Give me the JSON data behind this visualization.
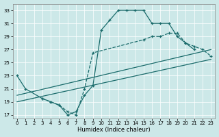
{
  "xlabel": "Humidex (Indice chaleur)",
  "xlim": [
    -0.5,
    23.5
  ],
  "ylim": [
    16.5,
    34
  ],
  "yticks": [
    17,
    19,
    21,
    23,
    25,
    27,
    29,
    31,
    33
  ],
  "xticks": [
    0,
    1,
    2,
    3,
    4,
    5,
    6,
    7,
    8,
    9,
    10,
    11,
    12,
    13,
    14,
    15,
    16,
    17,
    18,
    19,
    20,
    21,
    22,
    23
  ],
  "bg_color": "#cce8e8",
  "line_color": "#1a6b6b",
  "grid_color": "#ffffff",
  "lines": [
    {
      "x": [
        0,
        1,
        3,
        4,
        5,
        6,
        7,
        8,
        9,
        10,
        11,
        12,
        13,
        14,
        15,
        16,
        17,
        18,
        19,
        20,
        21
      ],
      "y": [
        23,
        21,
        19.5,
        19,
        18.5,
        17,
        17.5,
        20,
        21.5,
        30,
        31.5,
        33,
        33,
        33,
        33,
        31,
        31,
        31,
        29,
        28,
        27
      ],
      "style": "solid",
      "marker": true
    },
    {
      "x": [
        3,
        4,
        5,
        6,
        7,
        8,
        9,
        15,
        16,
        17,
        18,
        19,
        20,
        21,
        22,
        23
      ],
      "y": [
        19.5,
        19,
        18.5,
        17.5,
        17,
        21,
        26.5,
        28.5,
        29,
        29,
        29.5,
        29.5,
        28,
        27.5,
        27,
        26
      ],
      "style": "dashed",
      "marker": true
    },
    {
      "x": [
        0,
        23
      ],
      "y": [
        19,
        25.5
      ],
      "style": "solid",
      "marker": false
    },
    {
      "x": [
        0,
        23
      ],
      "y": [
        20,
        27
      ],
      "style": "solid",
      "marker": false
    }
  ]
}
